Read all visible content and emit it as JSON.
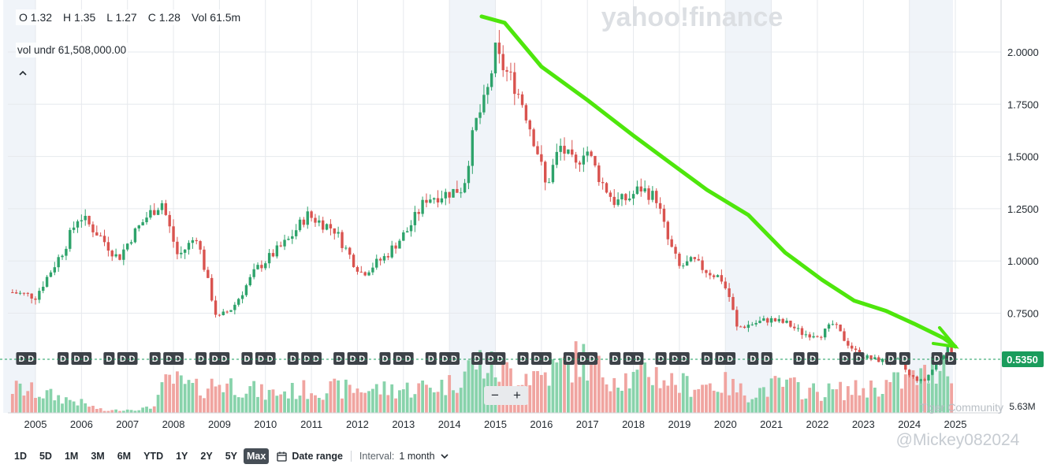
{
  "ohlc": {
    "open": "O 1.32",
    "high": "H 1.35",
    "low": "L 1.27",
    "close": "C 1.28",
    "volume": "Vol 61.5m"
  },
  "vol_line": "vol undr  61,508,000.00",
  "collapse_icon": "chevron-up-icon",
  "watermark": "yahoo!finance",
  "community_watermark": "Tiger Community",
  "username_watermark": "@Mickey082024",
  "current_price_label": "0.5350",
  "volume_max_label": "5.63M",
  "dividend_marker": "D",
  "zoom": {
    "minus": "−",
    "plus": "+"
  },
  "toolbar": {
    "ranges": [
      "1D",
      "5D",
      "1M",
      "3M",
      "6M",
      "YTD",
      "1Y",
      "2Y",
      "5Y",
      "Max"
    ],
    "active": "Max",
    "date_range_label": "Date range",
    "interval_label": "Interval:",
    "interval_value": "1 month"
  },
  "colors": {
    "up": "#2ea36b",
    "down": "#d9534f",
    "trend": "#4ee60c",
    "price_badge": "#1a9c5c",
    "up_volume": "#88d3ab",
    "down_volume": "#f0a4a0"
  },
  "chart_data": {
    "type": "candlestick",
    "interval": "1 month",
    "price_axis_ticks": [
      0.75,
      1.0,
      1.25,
      1.5,
      1.75,
      2.0
    ],
    "price_axis_labels": [
      "0.7500",
      "1.0000",
      "1.2500",
      "1.5000",
      "1.7500",
      "2.0000"
    ],
    "x_axis_labels": [
      "2005",
      "2006",
      "2007",
      "2008",
      "2009",
      "2010",
      "2011",
      "2012",
      "2013",
      "2014",
      "2015",
      "2016",
      "2017",
      "2018",
      "2019",
      "2020",
      "2021",
      "2022",
      "2023",
      "2024",
      "2025"
    ],
    "current_price": 0.535,
    "dividend_marker_years": [
      2004.7,
      2004.9,
      2005.6,
      2005.9,
      2006.1,
      2006.6,
      2006.9,
      2007.1,
      2007.6,
      2007.9,
      2008.1,
      2008.6,
      2008.9,
      2009.1,
      2009.6,
      2009.9,
      2010.1,
      2010.6,
      2010.9,
      2011.1,
      2011.6,
      2011.9,
      2012.1,
      2012.6,
      2012.9,
      2013.1,
      2013.6,
      2013.9,
      2014.1,
      2014.6,
      2014.9,
      2015.1,
      2015.6,
      2015.9,
      2016.1,
      2016.6,
      2016.9,
      2017.1,
      2017.6,
      2017.9,
      2018.1,
      2018.6,
      2018.9,
      2019.1,
      2019.6,
      2019.9,
      2020.1,
      2020.6,
      2020.9,
      2021.6,
      2021.9,
      2022.6,
      2022.9,
      2023.6,
      2023.9,
      2024.6,
      2024.9
    ],
    "price_anchors": [
      [
        2004.5,
        0.85
      ],
      [
        2005.0,
        0.83
      ],
      [
        2005.6,
        1.05
      ],
      [
        2005.95,
        1.22
      ],
      [
        2006.4,
        1.12
      ],
      [
        2006.8,
        1.01
      ],
      [
        2007.1,
        1.12
      ],
      [
        2007.45,
        1.22
      ],
      [
        2007.75,
        1.28
      ],
      [
        2008.1,
        1.02
      ],
      [
        2008.5,
        1.12
      ],
      [
        2008.95,
        0.72
      ],
      [
        2009.3,
        0.78
      ],
      [
        2009.8,
        0.96
      ],
      [
        2010.5,
        1.1
      ],
      [
        2010.9,
        1.22
      ],
      [
        2011.5,
        1.15
      ],
      [
        2011.9,
        1.0
      ],
      [
        2012.1,
        0.94
      ],
      [
        2012.6,
        1.02
      ],
      [
        2013.1,
        1.15
      ],
      [
        2013.5,
        1.3
      ],
      [
        2013.9,
        1.32
      ],
      [
        2014.3,
        1.35
      ],
      [
        2014.55,
        1.65
      ],
      [
        2014.8,
        1.78
      ],
      [
        2015.0,
        2.0
      ],
      [
        2015.1,
        1.95
      ],
      [
        2015.4,
        1.85
      ],
      [
        2015.6,
        1.75
      ],
      [
        2015.95,
        1.5
      ],
      [
        2016.1,
        1.35
      ],
      [
        2016.4,
        1.55
      ],
      [
        2016.75,
        1.45
      ],
      [
        2016.95,
        1.55
      ],
      [
        2017.3,
        1.38
      ],
      [
        2017.6,
        1.28
      ],
      [
        2017.9,
        1.3
      ],
      [
        2018.15,
        1.35
      ],
      [
        2018.5,
        1.3
      ],
      [
        2018.75,
        1.1
      ],
      [
        2019.0,
        0.97
      ],
      [
        2019.3,
        1.0
      ],
      [
        2019.6,
        0.95
      ],
      [
        2019.9,
        0.92
      ],
      [
        2020.1,
        0.82
      ],
      [
        2020.25,
        0.68
      ],
      [
        2020.6,
        0.7
      ],
      [
        2020.95,
        0.72
      ],
      [
        2021.35,
        0.7
      ],
      [
        2021.7,
        0.65
      ],
      [
        2022.1,
        0.65
      ],
      [
        2022.35,
        0.7
      ],
      [
        2022.6,
        0.62
      ],
      [
        2022.9,
        0.55
      ],
      [
        2023.2,
        0.53
      ],
      [
        2023.5,
        0.52
      ],
      [
        2023.8,
        0.52
      ],
      [
        2024.0,
        0.45
      ],
      [
        2024.3,
        0.42
      ],
      [
        2024.5,
        0.48
      ],
      [
        2024.7,
        0.55
      ],
      [
        2024.85,
        0.58
      ],
      [
        2024.95,
        0.535
      ]
    ],
    "volume_anchors": [
      [
        2004.5,
        0.26
      ],
      [
        2005.0,
        0.22
      ],
      [
        2005.9,
        0.12
      ],
      [
        2006.5,
        0.02
      ],
      [
        2007.5,
        0.05
      ],
      [
        2007.9,
        0.35
      ],
      [
        2008.5,
        0.25
      ],
      [
        2009.0,
        0.32
      ],
      [
        2009.5,
        0.28
      ],
      [
        2010.0,
        0.2
      ],
      [
        2011.0,
        0.25
      ],
      [
        2012.0,
        0.25
      ],
      [
        2013.0,
        0.25
      ],
      [
        2014.0,
        0.3
      ],
      [
        2014.6,
        0.55
      ],
      [
        2015.0,
        0.45
      ],
      [
        2016.0,
        0.4
      ],
      [
        2016.9,
        0.58
      ],
      [
        2017.2,
        0.45
      ],
      [
        2018.0,
        0.35
      ],
      [
        2018.3,
        0.45
      ],
      [
        2019.0,
        0.3
      ],
      [
        2020.0,
        0.3
      ],
      [
        2020.5,
        0.2
      ],
      [
        2021.2,
        0.3
      ],
      [
        2022.0,
        0.22
      ],
      [
        2023.0,
        0.25
      ],
      [
        2023.5,
        0.3
      ],
      [
        2024.0,
        0.35
      ],
      [
        2024.4,
        0.4
      ],
      [
        2024.75,
        0.6
      ],
      [
        2024.95,
        0.5
      ]
    ]
  }
}
